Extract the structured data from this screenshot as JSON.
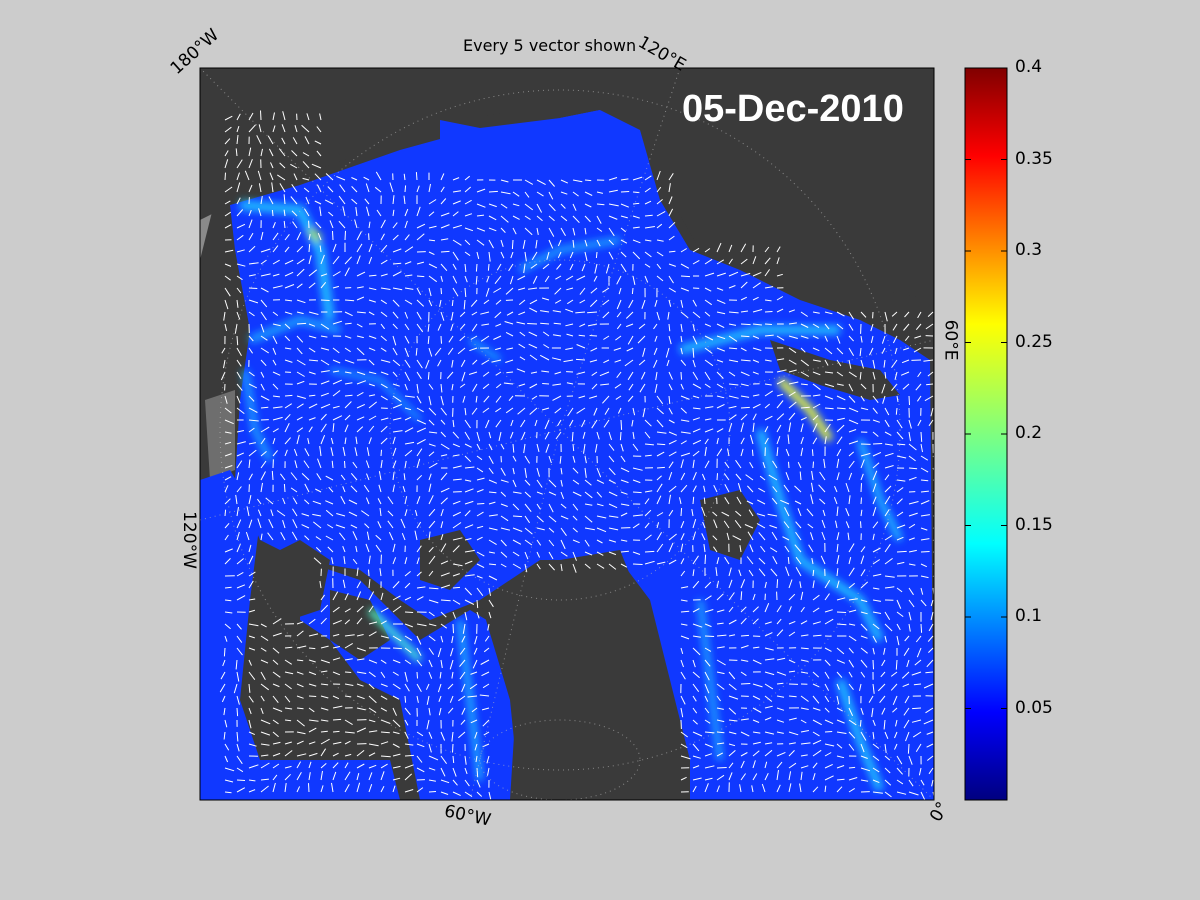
{
  "title": "Every 5 vector shown",
  "date": "05-Dec-2010",
  "longitude_labels": {
    "lon_180w": "180°W",
    "lon_120e": "120°E",
    "lon_60e": "60°E",
    "lon_120w": "120°W",
    "lon_60w": "60°W",
    "lon_0": "0°"
  },
  "colorbar": {
    "colormap": "jet",
    "min": 0,
    "max": 0.4,
    "ticks": [
      "0.05",
      "0.1",
      "0.15",
      "0.2",
      "0.25",
      "0.3",
      "0.35",
      "0.4"
    ]
  },
  "colors": {
    "figure_bg": "#cccccc",
    "land": "#3a3a3a",
    "land_light": "#8a8a8a",
    "ice_low": "#1038ff",
    "vector": "#ffffff",
    "date_text": "#ffffff"
  }
}
